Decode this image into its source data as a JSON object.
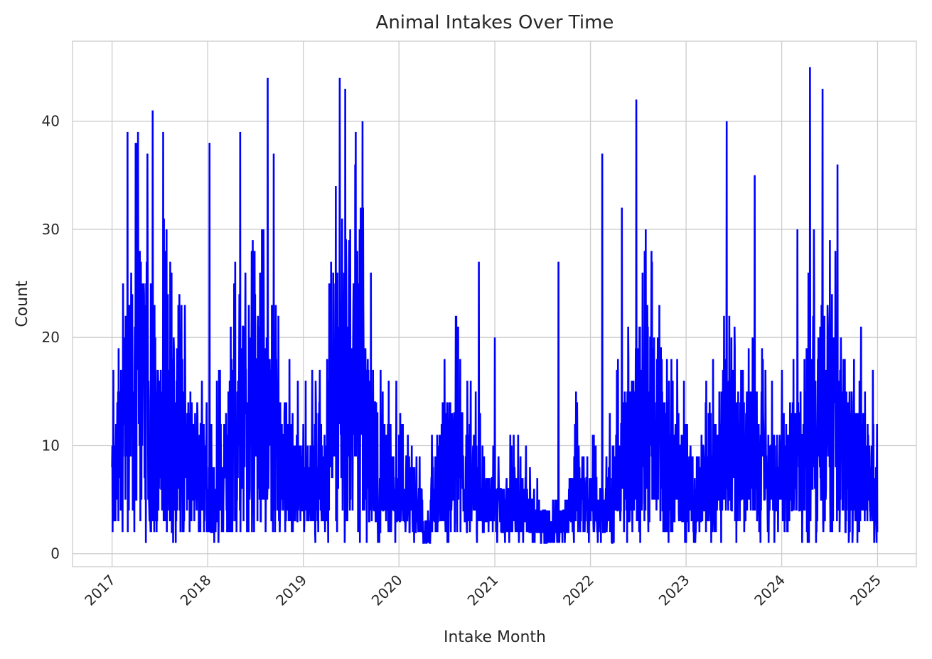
{
  "chart_data": {
    "type": "line",
    "title": "Animal Intakes Over Time",
    "xlabel": "Intake Month",
    "ylabel": "Count",
    "xlim": [
      "2016-08-03",
      "2025-05-29"
    ],
    "ylim": [
      -1.2,
      47.4
    ],
    "x_ticks": [
      "2017",
      "2018",
      "2019",
      "2020",
      "2021",
      "2022",
      "2023",
      "2024",
      "2025"
    ],
    "y_ticks": [
      0,
      10,
      20,
      30,
      40
    ],
    "grid": true,
    "legend": "none",
    "series": [
      {
        "color": "#0000ff",
        "x_start": "2017-01-01",
        "x_end": "2024-12-31",
        "x_step": "1 day",
        "monthly_mean": [
          10,
          13,
          16,
          17,
          18,
          15,
          14,
          13,
          12,
          10,
          9,
          8,
          6,
          8,
          10,
          12,
          14,
          13,
          15,
          14,
          12,
          9,
          8,
          7,
          7,
          8,
          9,
          12,
          17,
          20,
          18,
          15,
          12,
          9,
          8,
          7,
          6,
          5,
          4,
          2,
          5,
          8,
          9,
          10,
          8,
          7,
          6,
          5,
          4,
          4,
          5,
          5,
          4,
          3,
          3,
          3,
          3,
          5,
          7,
          6,
          5,
          4,
          6,
          8,
          10,
          12,
          14,
          14,
          13,
          10,
          8,
          7,
          6,
          6,
          7,
          8,
          10,
          11,
          12,
          11,
          10,
          9,
          8,
          7,
          8,
          9,
          10,
          12,
          14,
          15,
          13,
          12,
          11,
          9,
          8,
          8
        ],
        "spikes": [
          {
            "x": "2017-03-01",
            "y": 39
          },
          {
            "x": "2017-04-10",
            "y": 39
          },
          {
            "x": "2017-06-05",
            "y": 41
          },
          {
            "x": "2017-07-15",
            "y": 39
          },
          {
            "x": "2018-01-08",
            "y": 38
          },
          {
            "x": "2018-05-05",
            "y": 39
          },
          {
            "x": "2018-08-18",
            "y": 44
          },
          {
            "x": "2018-09-10",
            "y": 37
          },
          {
            "x": "2019-05-20",
            "y": 44
          },
          {
            "x": "2019-06-10",
            "y": 43
          },
          {
            "x": "2019-07-20",
            "y": 39
          },
          {
            "x": "2019-08-15",
            "y": 40
          },
          {
            "x": "2020-11-01",
            "y": 27
          },
          {
            "x": "2021-01-01",
            "y": 20
          },
          {
            "x": "2021-09-01",
            "y": 27
          },
          {
            "x": "2022-02-15",
            "y": 37
          },
          {
            "x": "2022-05-01",
            "y": 32
          },
          {
            "x": "2022-06-25",
            "y": 42
          },
          {
            "x": "2023-06-05",
            "y": 40
          },
          {
            "x": "2023-09-20",
            "y": 35
          },
          {
            "x": "2024-03-01",
            "y": 30
          },
          {
            "x": "2024-04-18",
            "y": 45
          },
          {
            "x": "2024-06-05",
            "y": 43
          },
          {
            "x": "2024-08-01",
            "y": 36
          }
        ]
      }
    ]
  }
}
